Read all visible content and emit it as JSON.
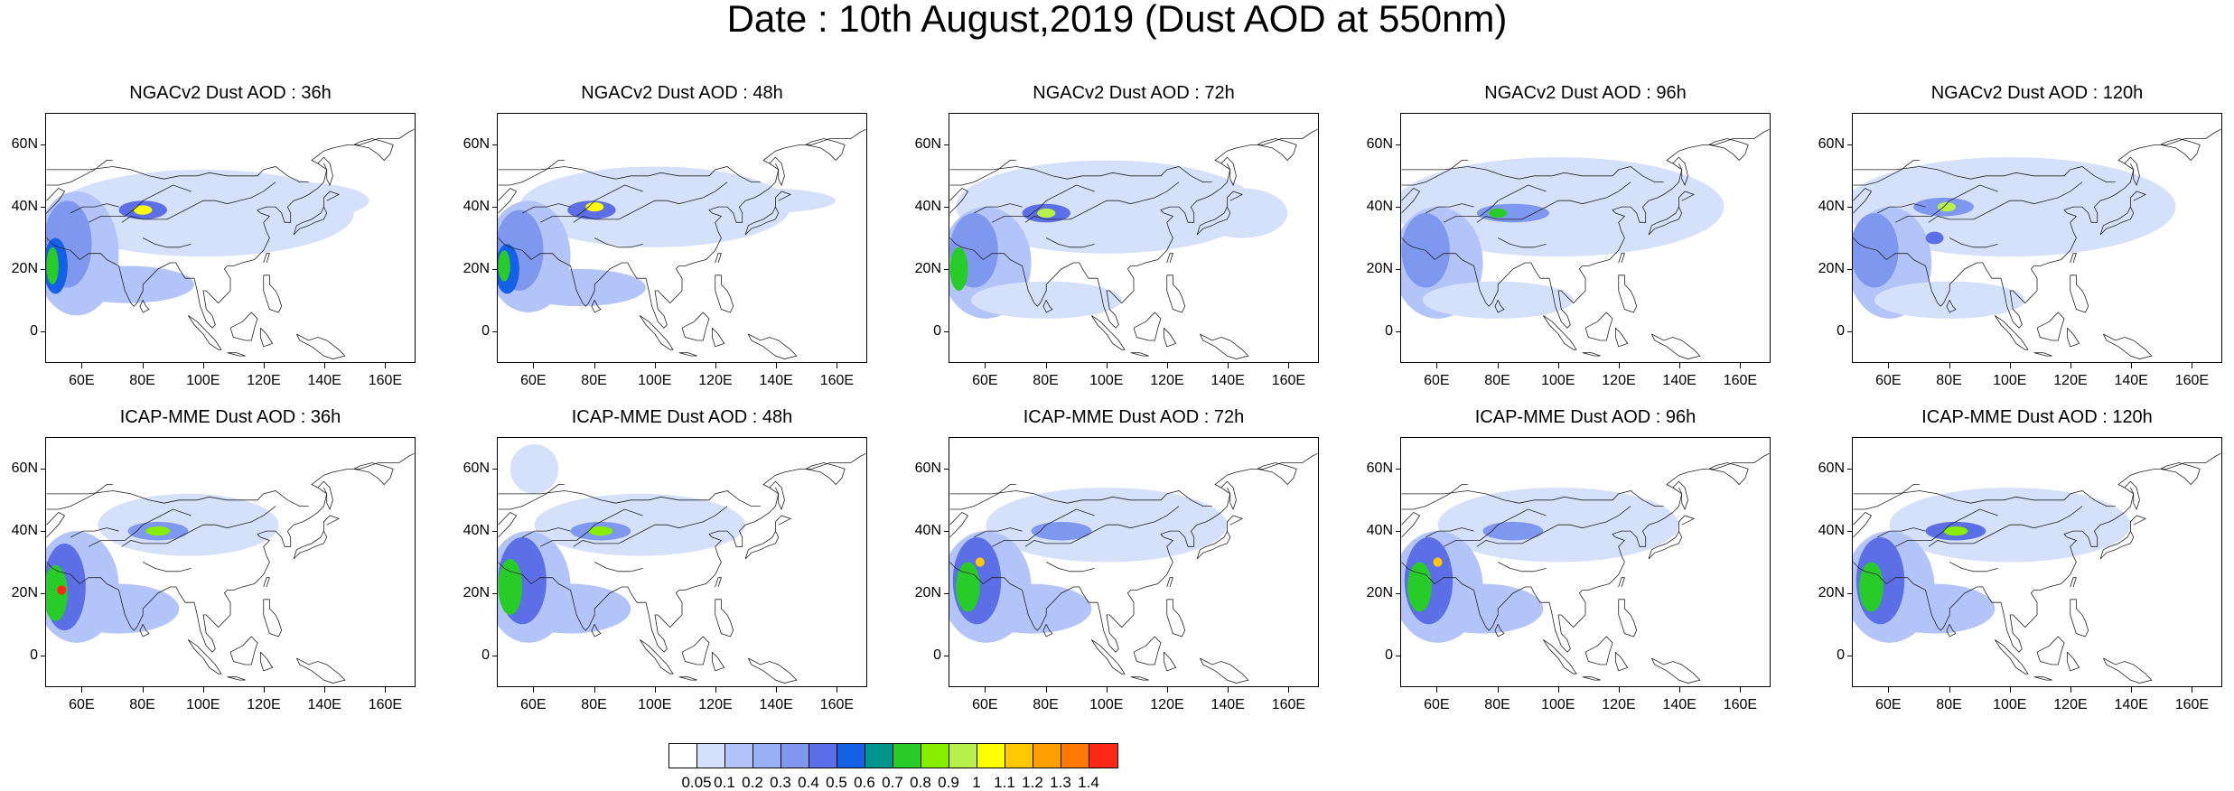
{
  "title": "Date : 10th August,2019 (Dust AOD at 550nm)",
  "colors": {
    "levels": [
      "#ffffff",
      "#d5e0fb",
      "#b3c5f8",
      "#9ab0f4",
      "#7f98ef",
      "#5c6fe6",
      "#1460e6",
      "#00968c",
      "#28cc28",
      "#87ee00",
      "#b8f04c",
      "#ffff00",
      "#ffc800",
      "#ffa000",
      "#ff7800",
      "#ff2814"
    ],
    "coast": "#222222"
  },
  "chart_data": {
    "type": "heatmap",
    "title": "Date : 10th August,2019 (Dust AOD at 550nm)",
    "panel_rows": 2,
    "panel_cols": 5,
    "lon_range": [
      48,
      170
    ],
    "lat_range": [
      -10,
      70
    ],
    "x_ticks": [
      "60E",
      "80E",
      "100E",
      "120E",
      "140E",
      "160E"
    ],
    "x_tick_values": [
      60,
      80,
      100,
      120,
      140,
      160
    ],
    "y_ticks": [
      "60N",
      "40N",
      "20N",
      "0"
    ],
    "y_tick_values": [
      60,
      40,
      20,
      0
    ],
    "colorbar": {
      "labels": [
        "0.05",
        "0.1",
        "0.2",
        "0.3",
        "0.4",
        "0.5",
        "0.6",
        "0.7",
        "0.8",
        "0.9",
        "1",
        "1.1",
        "1.2",
        "1.3",
        "1.4"
      ],
      "boundaries": [
        0.05,
        0.1,
        0.2,
        0.3,
        0.4,
        0.5,
        0.6,
        0.7,
        0.8,
        0.9,
        1.0,
        1.1,
        1.2,
        1.3,
        1.4
      ]
    },
    "panels": [
      {
        "title": "NGACv2 Dust AOD : 36h",
        "plumes": [
          {
            "lon": 100,
            "lat": 38,
            "rx": 50,
            "ry": 14,
            "level": 1
          },
          {
            "lon": 130,
            "lat": 42,
            "rx": 25,
            "ry": 6,
            "level": 1
          },
          {
            "lon": 58,
            "lat": 25,
            "rx": 14,
            "ry": 20,
            "level": 2
          },
          {
            "lon": 75,
            "lat": 15,
            "rx": 22,
            "ry": 6,
            "level": 2
          },
          {
            "lon": 55,
            "lat": 28,
            "rx": 8,
            "ry": 14,
            "level": 4
          },
          {
            "lon": 51,
            "lat": 21,
            "rx": 4,
            "ry": 9,
            "level": 6
          },
          {
            "lon": 50,
            "lat": 21,
            "rx": 2,
            "ry": 6,
            "level": 8
          },
          {
            "lon": 80,
            "lat": 39,
            "rx": 8,
            "ry": 3,
            "level": 5
          },
          {
            "lon": 80,
            "lat": 39,
            "rx": 3,
            "ry": 1.5,
            "level": 11
          }
        ]
      },
      {
        "title": "NGACv2 Dust AOD : 48h",
        "plumes": [
          {
            "lon": 100,
            "lat": 40,
            "rx": 45,
            "ry": 13,
            "level": 1
          },
          {
            "lon": 135,
            "lat": 42,
            "rx": 25,
            "ry": 4,
            "level": 1
          },
          {
            "lon": 58,
            "lat": 24,
            "rx": 14,
            "ry": 18,
            "level": 2
          },
          {
            "lon": 75,
            "lat": 14,
            "rx": 22,
            "ry": 6,
            "level": 2
          },
          {
            "lon": 55,
            "lat": 26,
            "rx": 8,
            "ry": 13,
            "level": 4
          },
          {
            "lon": 51,
            "lat": 20,
            "rx": 4,
            "ry": 8,
            "level": 6
          },
          {
            "lon": 50,
            "lat": 21,
            "rx": 2,
            "ry": 5,
            "level": 8
          },
          {
            "lon": 79,
            "lat": 39,
            "rx": 8,
            "ry": 3,
            "level": 5
          },
          {
            "lon": 80,
            "lat": 40,
            "rx": 3,
            "ry": 1.5,
            "level": 11
          }
        ]
      },
      {
        "title": "NGACv2 Dust AOD : 72h",
        "plumes": [
          {
            "lon": 100,
            "lat": 40,
            "rx": 50,
            "ry": 15,
            "level": 1
          },
          {
            "lon": 145,
            "lat": 38,
            "rx": 15,
            "ry": 8,
            "level": 1
          },
          {
            "lon": 60,
            "lat": 22,
            "rx": 15,
            "ry": 18,
            "level": 2
          },
          {
            "lon": 80,
            "lat": 10,
            "rx": 25,
            "ry": 6,
            "level": 1
          },
          {
            "lon": 56,
            "lat": 26,
            "rx": 8,
            "ry": 12,
            "level": 4
          },
          {
            "lon": 51,
            "lat": 20,
            "rx": 3,
            "ry": 7,
            "level": 8
          },
          {
            "lon": 80,
            "lat": 38,
            "rx": 8,
            "ry": 3,
            "level": 5
          },
          {
            "lon": 80,
            "lat": 38,
            "rx": 3,
            "ry": 1.5,
            "level": 10
          }
        ]
      },
      {
        "title": "NGACv2 Dust AOD : 96h",
        "plumes": [
          {
            "lon": 100,
            "lat": 40,
            "rx": 55,
            "ry": 16,
            "level": 1
          },
          {
            "lon": 60,
            "lat": 22,
            "rx": 15,
            "ry": 18,
            "level": 2
          },
          {
            "lon": 80,
            "lat": 10,
            "rx": 25,
            "ry": 6,
            "level": 1
          },
          {
            "lon": 56,
            "lat": 26,
            "rx": 8,
            "ry": 12,
            "level": 4
          },
          {
            "lon": 85,
            "lat": 38,
            "rx": 12,
            "ry": 3,
            "level": 4
          },
          {
            "lon": 80,
            "lat": 38,
            "rx": 3,
            "ry": 1.5,
            "level": 8
          }
        ]
      },
      {
        "title": "NGACv2 Dust AOD : 120h",
        "plumes": [
          {
            "lon": 100,
            "lat": 40,
            "rx": 55,
            "ry": 16,
            "level": 1
          },
          {
            "lon": 60,
            "lat": 22,
            "rx": 14,
            "ry": 18,
            "level": 2
          },
          {
            "lon": 80,
            "lat": 10,
            "rx": 25,
            "ry": 6,
            "level": 1
          },
          {
            "lon": 55,
            "lat": 26,
            "rx": 8,
            "ry": 12,
            "level": 4
          },
          {
            "lon": 75,
            "lat": 30,
            "rx": 3,
            "ry": 2,
            "level": 5
          },
          {
            "lon": 78,
            "lat": 40,
            "rx": 10,
            "ry": 3,
            "level": 4
          },
          {
            "lon": 79,
            "lat": 40,
            "rx": 3,
            "ry": 1.5,
            "level": 10
          }
        ]
      },
      {
        "title": "ICAP-MME Dust AOD : 36h",
        "plumes": [
          {
            "lon": 95,
            "lat": 42,
            "rx": 30,
            "ry": 10,
            "level": 1
          },
          {
            "lon": 58,
            "lat": 22,
            "rx": 14,
            "ry": 18,
            "level": 2
          },
          {
            "lon": 72,
            "lat": 15,
            "rx": 20,
            "ry": 8,
            "level": 2
          },
          {
            "lon": 54,
            "lat": 22,
            "rx": 7,
            "ry": 14,
            "level": 5
          },
          {
            "lon": 51,
            "lat": 20,
            "rx": 4,
            "ry": 9,
            "level": 8
          },
          {
            "lon": 53,
            "lat": 21,
            "rx": 1.5,
            "ry": 1.5,
            "level": 15
          },
          {
            "lon": 85,
            "lat": 40,
            "rx": 10,
            "ry": 3,
            "level": 4
          },
          {
            "lon": 85,
            "lat": 40,
            "rx": 4,
            "ry": 1.5,
            "level": 9
          }
        ]
      },
      {
        "title": "ICAP-MME Dust AOD : 48h",
        "plumes": [
          {
            "lon": 95,
            "lat": 42,
            "rx": 35,
            "ry": 10,
            "level": 1
          },
          {
            "lon": 60,
            "lat": 60,
            "rx": 8,
            "ry": 8,
            "level": 1
          },
          {
            "lon": 58,
            "lat": 22,
            "rx": 14,
            "ry": 18,
            "level": 2
          },
          {
            "lon": 72,
            "lat": 15,
            "rx": 20,
            "ry": 8,
            "level": 2
          },
          {
            "lon": 56,
            "lat": 24,
            "rx": 8,
            "ry": 14,
            "level": 5
          },
          {
            "lon": 52,
            "lat": 22,
            "rx": 4,
            "ry": 9,
            "level": 8
          },
          {
            "lon": 82,
            "lat": 40,
            "rx": 10,
            "ry": 3,
            "level": 4
          },
          {
            "lon": 82,
            "lat": 40,
            "rx": 4,
            "ry": 1.5,
            "level": 9
          }
        ]
      },
      {
        "title": "ICAP-MME Dust AOD : 72h",
        "plumes": [
          {
            "lon": 100,
            "lat": 42,
            "rx": 40,
            "ry": 12,
            "level": 1
          },
          {
            "lon": 60,
            "lat": 22,
            "rx": 15,
            "ry": 18,
            "level": 2
          },
          {
            "lon": 75,
            "lat": 15,
            "rx": 20,
            "ry": 8,
            "level": 2
          },
          {
            "lon": 57,
            "lat": 24,
            "rx": 8,
            "ry": 14,
            "level": 5
          },
          {
            "lon": 54,
            "lat": 22,
            "rx": 4,
            "ry": 8,
            "level": 8
          },
          {
            "lon": 58,
            "lat": 30,
            "rx": 1.5,
            "ry": 1.5,
            "level": 12
          },
          {
            "lon": 85,
            "lat": 40,
            "rx": 10,
            "ry": 3,
            "level": 4
          }
        ]
      },
      {
        "title": "ICAP-MME Dust AOD : 96h",
        "plumes": [
          {
            "lon": 100,
            "lat": 42,
            "rx": 40,
            "ry": 12,
            "level": 1
          },
          {
            "lon": 60,
            "lat": 22,
            "rx": 15,
            "ry": 18,
            "level": 2
          },
          {
            "lon": 75,
            "lat": 15,
            "rx": 20,
            "ry": 8,
            "level": 2
          },
          {
            "lon": 57,
            "lat": 24,
            "rx": 8,
            "ry": 14,
            "level": 5
          },
          {
            "lon": 54,
            "lat": 22,
            "rx": 4,
            "ry": 8,
            "level": 8
          },
          {
            "lon": 60,
            "lat": 30,
            "rx": 1.5,
            "ry": 1.5,
            "level": 12
          },
          {
            "lon": 85,
            "lat": 40,
            "rx": 10,
            "ry": 3,
            "level": 4
          }
        ]
      },
      {
        "title": "ICAP-MME Dust AOD : 120h",
        "plumes": [
          {
            "lon": 100,
            "lat": 42,
            "rx": 40,
            "ry": 12,
            "level": 1
          },
          {
            "lon": 60,
            "lat": 22,
            "rx": 15,
            "ry": 18,
            "level": 2
          },
          {
            "lon": 75,
            "lat": 15,
            "rx": 20,
            "ry": 8,
            "level": 2
          },
          {
            "lon": 57,
            "lat": 24,
            "rx": 8,
            "ry": 14,
            "level": 5
          },
          {
            "lon": 54,
            "lat": 22,
            "rx": 4,
            "ry": 8,
            "level": 8
          },
          {
            "lon": 82,
            "lat": 40,
            "rx": 10,
            "ry": 3,
            "level": 5
          },
          {
            "lon": 82,
            "lat": 40,
            "rx": 4,
            "ry": 1.5,
            "level": 9
          }
        ]
      }
    ]
  }
}
